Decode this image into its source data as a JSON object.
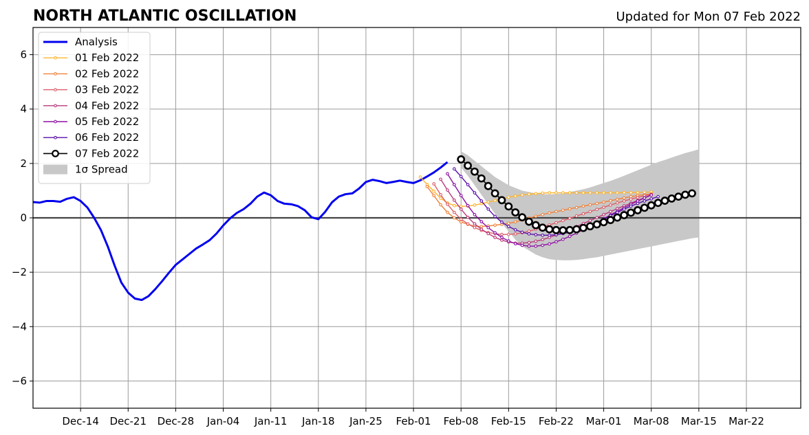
{
  "chart_data": {
    "type": "line",
    "title": "NORTH ATLANTIC OSCILLATION",
    "subtitle": "Updated for Mon 07 Feb 2022",
    "xlabel": "",
    "ylabel": "",
    "ylim": [
      -7,
      7
    ],
    "yticks": [
      -6,
      -4,
      -2,
      0,
      2,
      4,
      6
    ],
    "ytick_labels": [
      "−6",
      "−4",
      "−2",
      "0",
      "2",
      "4",
      "6"
    ],
    "xlim": [
      "2021-12-07",
      "2022-03-30"
    ],
    "xtick_dates": [
      "2021-12-14",
      "2021-12-21",
      "2021-12-28",
      "2022-01-04",
      "2022-01-11",
      "2022-01-18",
      "2022-01-25",
      "2022-02-01",
      "2022-02-08",
      "2022-02-15",
      "2022-02-22",
      "2022-03-01",
      "2022-03-08",
      "2022-03-15",
      "2022-03-22"
    ],
    "xtick_labels": [
      "Dec-14",
      "Dec-21",
      "Dec-28",
      "Jan-04",
      "Jan-11",
      "Jan-18",
      "Jan-25",
      "Feb-01",
      "Feb-08",
      "Feb-15",
      "Feb-22",
      "Mar-01",
      "Mar-08",
      "Mar-15",
      "Mar-22"
    ],
    "grid": true,
    "zero_line": true,
    "legend_position": "top-left",
    "legend": [
      "Analysis",
      "01 Feb 2022",
      "02 Feb 2022",
      "03 Feb 2022",
      "04 Feb 2022",
      "05 Feb 2022",
      "06 Feb 2022",
      "07 Feb 2022",
      "1σ Spread"
    ],
    "analysis": {
      "name": "Analysis",
      "color": "#0000ee",
      "start_date": "2021-12-07",
      "values": [
        0.58,
        0.56,
        0.62,
        0.62,
        0.59,
        0.7,
        0.76,
        0.62,
        0.38,
        0.0,
        -0.45,
        -1.05,
        -1.75,
        -2.38,
        -2.75,
        -2.97,
        -3.02,
        -2.88,
        -2.62,
        -2.33,
        -2.02,
        -1.73,
        -1.53,
        -1.33,
        -1.13,
        -0.98,
        -0.82,
        -0.58,
        -0.28,
        -0.02,
        0.18,
        0.32,
        0.52,
        0.78,
        0.93,
        0.83,
        0.62,
        0.52,
        0.5,
        0.43,
        0.28,
        0.02,
        -0.05,
        0.22,
        0.57,
        0.78,
        0.87,
        0.9,
        1.08,
        1.32,
        1.4,
        1.35,
        1.28,
        1.32,
        1.37,
        1.32,
        1.28,
        1.38,
        1.52,
        1.67,
        1.85,
        2.05
      ]
    },
    "forecast_series": [
      {
        "name": "01 Feb 2022",
        "color": "#fdb42f",
        "start_date": "2022-02-02",
        "values": [
          1.5,
          1.23,
          0.98,
          0.72,
          0.55,
          0.45,
          0.42,
          0.43,
          0.47,
          0.52,
          0.58,
          0.64,
          0.7,
          0.76,
          0.8,
          0.84,
          0.87,
          0.89,
          0.91,
          0.92,
          0.92,
          0.92,
          0.92,
          0.92,
          0.92,
          0.92,
          0.92,
          0.92,
          0.92,
          0.92,
          0.93,
          0.93,
          0.93,
          0.94,
          0.95
        ]
      },
      {
        "name": "02 Feb 2022",
        "color": "#f0803a",
        "start_date": "2022-02-03",
        "values": [
          1.15,
          0.82,
          0.48,
          0.2,
          0.0,
          -0.15,
          -0.24,
          -0.3,
          -0.32,
          -0.3,
          -0.27,
          -0.24,
          -0.2,
          -0.15,
          -0.08,
          -0.01,
          0.06,
          0.12,
          0.18,
          0.23,
          0.28,
          0.33,
          0.38,
          0.43,
          0.48,
          0.53,
          0.58,
          0.63,
          0.68,
          0.73,
          0.78,
          0.82,
          0.85,
          0.88
        ]
      },
      {
        "name": "03 Feb 2022",
        "color": "#db5c68",
        "start_date": "2022-02-04",
        "values": [
          1.25,
          0.85,
          0.5,
          0.2,
          -0.05,
          -0.22,
          -0.36,
          -0.46,
          -0.54,
          -0.58,
          -0.61,
          -0.61,
          -0.59,
          -0.55,
          -0.49,
          -0.42,
          -0.34,
          -0.26,
          -0.18,
          -0.1,
          -0.02,
          0.07,
          0.15,
          0.23,
          0.31,
          0.39,
          0.47,
          0.55,
          0.62,
          0.69,
          0.75,
          0.81,
          0.86
        ]
      },
      {
        "name": "04 Feb 2022",
        "color": "#b73779",
        "start_date": "2022-02-05",
        "values": [
          1.42,
          1.02,
          0.65,
          0.32,
          0.02,
          -0.22,
          -0.42,
          -0.58,
          -0.72,
          -0.82,
          -0.89,
          -0.93,
          -0.93,
          -0.91,
          -0.86,
          -0.8,
          -0.72,
          -0.63,
          -0.53,
          -0.43,
          -0.32,
          -0.21,
          -0.1,
          0.01,
          0.12,
          0.23,
          0.34,
          0.44,
          0.54,
          0.64,
          0.74,
          0.84
        ]
      },
      {
        "name": "05 Feb 2022",
        "color": "#8c0ea1",
        "start_date": "2022-02-06",
        "values": [
          1.62,
          1.22,
          0.82,
          0.45,
          0.12,
          -0.14,
          -0.36,
          -0.55,
          -0.72,
          -0.85,
          -0.95,
          -1.01,
          -1.04,
          -1.04,
          -1.01,
          -0.96,
          -0.88,
          -0.79,
          -0.68,
          -0.56,
          -0.44,
          -0.31,
          -0.17,
          -0.03,
          0.11,
          0.24,
          0.37,
          0.5,
          0.62,
          0.73,
          0.84
        ]
      },
      {
        "name": "06 Feb 2022",
        "color": "#5a0ea8",
        "start_date": "2022-02-07",
        "values": [
          1.8,
          1.52,
          1.22,
          0.92,
          0.62,
          0.32,
          0.05,
          -0.16,
          -0.32,
          -0.44,
          -0.53,
          -0.59,
          -0.62,
          -0.64,
          -0.64,
          -0.62,
          -0.58,
          -0.53,
          -0.46,
          -0.38,
          -0.28,
          -0.17,
          -0.05,
          0.08,
          0.2,
          0.32,
          0.43,
          0.53,
          0.62,
          0.7,
          0.78
        ]
      },
      {
        "name": "07 Feb 2022",
        "color": "#000000",
        "start_date": "2022-02-08",
        "values": [
          2.15,
          1.92,
          1.7,
          1.45,
          1.17,
          0.9,
          0.65,
          0.42,
          0.2,
          0.02,
          -0.14,
          -0.27,
          -0.36,
          -0.42,
          -0.45,
          -0.46,
          -0.45,
          -0.42,
          -0.37,
          -0.31,
          -0.24,
          -0.16,
          -0.08,
          0.01,
          0.1,
          0.19,
          0.28,
          0.37,
          0.46,
          0.55,
          0.63,
          0.71,
          0.78,
          0.85,
          0.9
        ]
      }
    ],
    "spread": {
      "name": "1σ Spread",
      "color": "#c8c8c8",
      "start_date": "2022-02-08",
      "upper": [
        2.45,
        2.3,
        2.1,
        1.9,
        1.7,
        1.5,
        1.35,
        1.2,
        1.1,
        1.0,
        0.95,
        0.9,
        0.88,
        0.86,
        0.88,
        0.9,
        0.95,
        1.0,
        1.05,
        1.12,
        1.2,
        1.28,
        1.36,
        1.45,
        1.55,
        1.65,
        1.75,
        1.85,
        1.95,
        2.05,
        2.13,
        2.22,
        2.3,
        2.38,
        2.45,
        2.52
      ],
      "lower": [
        1.85,
        1.55,
        1.2,
        0.85,
        0.5,
        0.15,
        -0.2,
        -0.5,
        -0.8,
        -1.05,
        -1.2,
        -1.35,
        -1.45,
        -1.52,
        -1.55,
        -1.56,
        -1.56,
        -1.55,
        -1.52,
        -1.48,
        -1.45,
        -1.4,
        -1.35,
        -1.3,
        -1.25,
        -1.2,
        -1.15,
        -1.1,
        -1.05,
        -1.0,
        -0.95,
        -0.9,
        -0.85,
        -0.8,
        -0.75,
        -0.72
      ]
    }
  }
}
